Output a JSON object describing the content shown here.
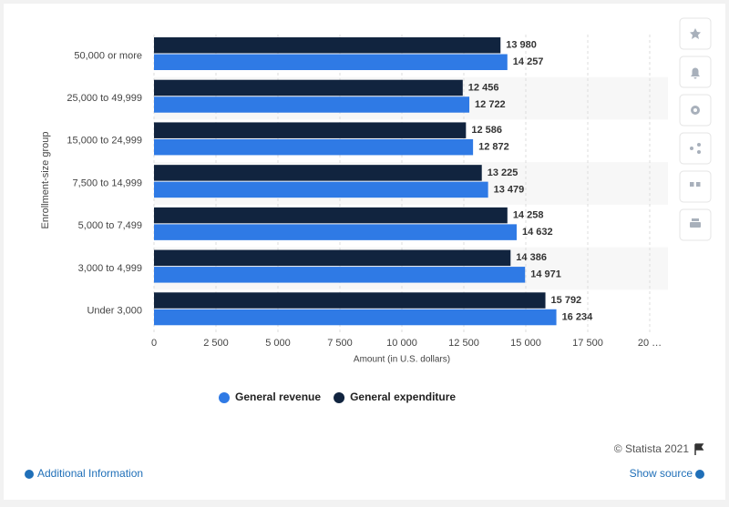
{
  "chart_data": {
    "type": "hbar",
    "categories": [
      "50,000 or more",
      "25,000 to 49,999",
      "15,000 to 24,999",
      "7,500 to 14,999",
      "5,000 to 7,499",
      "3,000 to 4,999",
      "Under 3,000"
    ],
    "series": [
      {
        "name": "General revenue",
        "color": "#2f7ae5",
        "values": [
          14257,
          12722,
          12872,
          13479,
          14632,
          14971,
          16234
        ],
        "value_labels": [
          "14 257",
          "12 722",
          "12 872",
          "13 479",
          "14 632",
          "14 971",
          "16 234"
        ]
      },
      {
        "name": "General expenditure",
        "color": "#11243f",
        "values": [
          13980,
          12456,
          12586,
          13225,
          14258,
          14386,
          15792
        ],
        "value_labels": [
          "13 980",
          "12 456",
          "12 586",
          "13 225",
          "14 258",
          "14 386",
          "15 792"
        ]
      }
    ],
    "xlabel": "Amount (in U.S. dollars)",
    "ylabel": "Enrollment-size group",
    "xlim": [
      0,
      20000
    ],
    "xticks": [
      0,
      {
        "value": 2500,
        "label": "2 500"
      },
      {
        "value": 5000,
        "label": "5 000"
      },
      {
        "value": 7500,
        "label": "7 500"
      },
      {
        "value": 10000,
        "label": "10 000"
      },
      {
        "value": 12500,
        "label": "12 500"
      },
      {
        "value": 15000,
        "label": "15 000"
      },
      {
        "value": 17500,
        "label": "17 500"
      },
      {
        "value": 20000,
        "label": "20 …"
      }
    ],
    "grid": true
  },
  "footer": {
    "copyright": "© Statista 2021",
    "additional_info": "Additional Information",
    "show_source": "Show source"
  }
}
